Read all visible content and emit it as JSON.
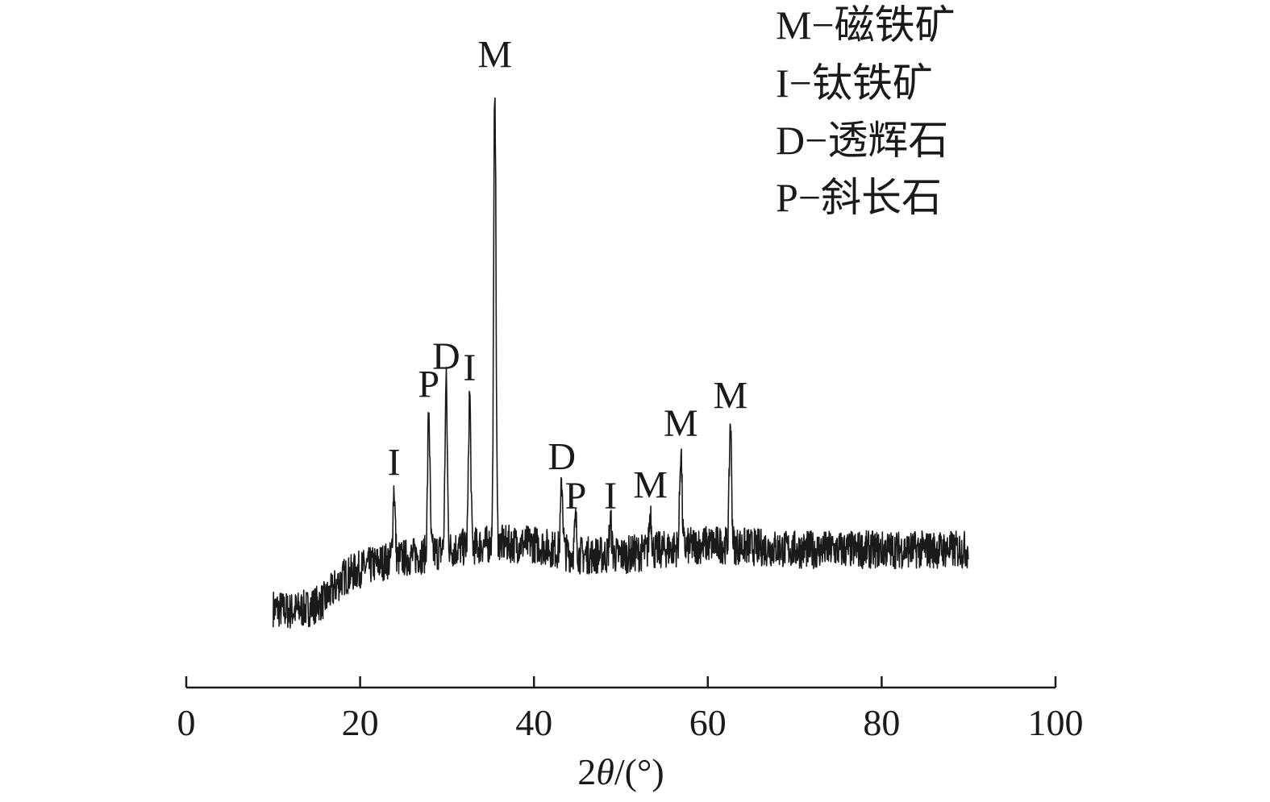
{
  "chart_data": {
    "type": "line",
    "title": "",
    "xlabel": {
      "prefix": "2",
      "symbol": "θ",
      "suffix": "/(°)"
    },
    "ylabel": "",
    "xlim": [
      0,
      100
    ],
    "ylim": [
      0,
      100
    ],
    "y_axis_visible": false,
    "grid": false,
    "x_ticks": [
      0,
      20,
      40,
      60,
      80,
      100
    ],
    "x_tick_labels": [
      "0",
      "20",
      "40",
      "60",
      "80",
      "100"
    ],
    "legend_position": "top-right",
    "legend": [
      {
        "symbol": "M",
        "sep": "−",
        "name": "磁铁矿"
      },
      {
        "symbol": "I",
        "sep": "−",
        "name": "钛铁矿"
      },
      {
        "symbol": "D",
        "sep": "−",
        "name": "透辉石"
      },
      {
        "symbol": "P",
        "sep": "−",
        "name": "斜长石"
      }
    ],
    "series": [
      {
        "noise": 3.4,
        "x_range": [
          10,
          90
        ],
        "step": 0.04,
        "baseline": [
          [
            10,
            1.5
          ],
          [
            12,
            1.0
          ],
          [
            14,
            1.5
          ],
          [
            16,
            3
          ],
          [
            18,
            7
          ],
          [
            20,
            8.5
          ],
          [
            23,
            10
          ],
          [
            27,
            11
          ],
          [
            30,
            12
          ],
          [
            35,
            13
          ],
          [
            40,
            13
          ],
          [
            45,
            11
          ],
          [
            50,
            11
          ],
          [
            55,
            12
          ],
          [
            60,
            13
          ],
          [
            70,
            12
          ],
          [
            80,
            12
          ],
          [
            90,
            12
          ]
        ],
        "peaks": [
          {
            "x": 23.9,
            "y": 23,
            "phase": "I"
          },
          {
            "x": 27.9,
            "y": 37,
            "phase": "P"
          },
          {
            "x": 29.9,
            "y": 42,
            "phase": "D"
          },
          {
            "x": 32.6,
            "y": 40,
            "phase": "I"
          },
          {
            "x": 35.5,
            "y": 96,
            "phase": "M"
          },
          {
            "x": 43.2,
            "y": 24,
            "phase": "D"
          },
          {
            "x": 44.8,
            "y": 17,
            "phase": "P"
          },
          {
            "x": 48.8,
            "y": 17,
            "phase": "I"
          },
          {
            "x": 53.4,
            "y": 19,
            "phase": "M"
          },
          {
            "x": 56.9,
            "y": 30,
            "phase": "M"
          },
          {
            "x": 62.6,
            "y": 35,
            "phase": "M"
          }
        ]
      }
    ]
  }
}
